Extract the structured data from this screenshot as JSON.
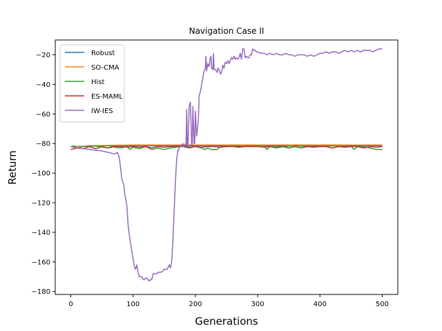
{
  "chart_data": {
    "type": "line",
    "title": "Navigation Case II",
    "xlabel": "Generations",
    "ylabel": "Return",
    "xlim": [
      -25,
      525
    ],
    "ylim": [
      -182,
      -10
    ],
    "xticks": [
      0,
      100,
      200,
      300,
      400,
      500
    ],
    "yticks": [
      -180,
      -160,
      -140,
      -120,
      -100,
      -80,
      -60,
      -40,
      -20
    ],
    "legend_position": "upper-left",
    "grid": false,
    "series": [
      {
        "name": "Robust",
        "color": "#1f77b4",
        "points": [
          [
            0,
            -82
          ],
          [
            25,
            -81.8
          ],
          [
            50,
            -81.5
          ],
          [
            100,
            -81.5
          ],
          [
            150,
            -81.5
          ],
          [
            200,
            -81.5
          ],
          [
            250,
            -81.5
          ],
          [
            300,
            -81.5
          ],
          [
            350,
            -81.5
          ],
          [
            400,
            -81.5
          ],
          [
            450,
            -81.5
          ],
          [
            500,
            -81.5
          ]
        ]
      },
      {
        "name": "SO-CMA",
        "color": "#ff7f0e",
        "points": [
          [
            0,
            -82
          ],
          [
            15,
            -82
          ],
          [
            30,
            -81.5
          ],
          [
            60,
            -81.2
          ],
          [
            100,
            -81
          ],
          [
            150,
            -81
          ],
          [
            200,
            -81
          ],
          [
            250,
            -81
          ],
          [
            300,
            -81
          ],
          [
            350,
            -81
          ],
          [
            400,
            -81
          ],
          [
            450,
            -81
          ],
          [
            500,
            -81
          ]
        ]
      },
      {
        "name": "Hist",
        "color": "#2ca02c",
        "points": [
          [
            0,
            -82
          ],
          [
            5,
            -81.5
          ],
          [
            10,
            -83
          ],
          [
            20,
            -82
          ],
          [
            35,
            -81.5
          ],
          [
            45,
            -82
          ],
          [
            60,
            -83
          ],
          [
            65,
            -82
          ],
          [
            70,
            -82.5
          ],
          [
            80,
            -83
          ],
          [
            90,
            -82
          ],
          [
            95,
            -84
          ],
          [
            100,
            -82.5
          ],
          [
            110,
            -83.5
          ],
          [
            120,
            -82
          ],
          [
            125,
            -83
          ],
          [
            130,
            -84
          ],
          [
            140,
            -83
          ],
          [
            150,
            -84
          ],
          [
            160,
            -83
          ],
          [
            175,
            -82
          ],
          [
            180,
            -82
          ],
          [
            190,
            -83
          ],
          [
            200,
            -82
          ],
          [
            210,
            -83
          ],
          [
            215,
            -84
          ],
          [
            220,
            -83
          ],
          [
            225,
            -84
          ],
          [
            235,
            -84
          ],
          [
            240,
            -82
          ],
          [
            250,
            -82
          ],
          [
            260,
            -81.5
          ],
          [
            270,
            -82
          ],
          [
            280,
            -81.5
          ],
          [
            300,
            -81.5
          ],
          [
            310,
            -81.5
          ],
          [
            315,
            -84
          ],
          [
            320,
            -82
          ],
          [
            340,
            -82
          ],
          [
            360,
            -81.5
          ],
          [
            380,
            -82
          ],
          [
            400,
            -82
          ],
          [
            420,
            -81.5
          ],
          [
            440,
            -82
          ],
          [
            450,
            -82
          ],
          [
            455,
            -84
          ],
          [
            460,
            -82
          ],
          [
            470,
            -82
          ],
          [
            480,
            -83
          ],
          [
            490,
            -84
          ],
          [
            500,
            -84
          ]
        ]
      },
      {
        "name": "ES-MAML",
        "color": "#d62728",
        "points": [
          [
            0,
            -84
          ],
          [
            10,
            -83
          ],
          [
            20,
            -83.5
          ],
          [
            30,
            -82
          ],
          [
            40,
            -83.5
          ],
          [
            50,
            -82
          ],
          [
            60,
            -83
          ],
          [
            70,
            -82
          ],
          [
            80,
            -82
          ],
          [
            90,
            -82.5
          ],
          [
            100,
            -82
          ],
          [
            110,
            -82.5
          ],
          [
            120,
            -82
          ],
          [
            130,
            -83
          ],
          [
            140,
            -82
          ],
          [
            150,
            -82.5
          ],
          [
            160,
            -82
          ],
          [
            170,
            -82
          ],
          [
            180,
            -81.5
          ],
          [
            190,
            -82.5
          ],
          [
            200,
            -82
          ],
          [
            210,
            -82.5
          ],
          [
            220,
            -82
          ],
          [
            230,
            -82
          ],
          [
            240,
            -82.5
          ],
          [
            250,
            -82
          ],
          [
            260,
            -82
          ],
          [
            270,
            -82.5
          ],
          [
            280,
            -82
          ],
          [
            290,
            -82
          ],
          [
            300,
            -82
          ],
          [
            310,
            -82.5
          ],
          [
            320,
            -82
          ],
          [
            330,
            -83
          ],
          [
            340,
            -82
          ],
          [
            350,
            -83
          ],
          [
            360,
            -82
          ],
          [
            370,
            -83
          ],
          [
            380,
            -82
          ],
          [
            390,
            -82.5
          ],
          [
            400,
            -82
          ],
          [
            410,
            -82
          ],
          [
            420,
            -83
          ],
          [
            430,
            -82
          ],
          [
            440,
            -82.5
          ],
          [
            450,
            -82
          ],
          [
            460,
            -82
          ],
          [
            470,
            -83
          ],
          [
            480,
            -82
          ],
          [
            490,
            -82.5
          ],
          [
            500,
            -82
          ]
        ]
      },
      {
        "name": "IW-IES",
        "color": "#9467bd",
        "points": [
          [
            0,
            -82
          ],
          [
            10,
            -83
          ],
          [
            20,
            -83.5
          ],
          [
            30,
            -84
          ],
          [
            40,
            -84.5
          ],
          [
            50,
            -85
          ],
          [
            60,
            -86
          ],
          [
            70,
            -87
          ],
          [
            75,
            -86
          ],
          [
            78,
            -90
          ],
          [
            80,
            -97
          ],
          [
            82,
            -104
          ],
          [
            85,
            -108
          ],
          [
            87,
            -115
          ],
          [
            90,
            -122
          ],
          [
            92,
            -135
          ],
          [
            95,
            -145
          ],
          [
            98,
            -153
          ],
          [
            100,
            -158
          ],
          [
            102,
            -163
          ],
          [
            104,
            -165
          ],
          [
            106,
            -162
          ],
          [
            108,
            -167
          ],
          [
            110,
            -170
          ],
          [
            112,
            -170
          ],
          [
            114,
            -170
          ],
          [
            116,
            -172
          ],
          [
            118,
            -172
          ],
          [
            120,
            -171
          ],
          [
            122,
            -171
          ],
          [
            124,
            -172
          ],
          [
            126,
            -173
          ],
          [
            128,
            -172
          ],
          [
            130,
            -172
          ],
          [
            132,
            -168
          ],
          [
            135,
            -168
          ],
          [
            138,
            -168
          ],
          [
            140,
            -167
          ],
          [
            145,
            -167
          ],
          [
            148,
            -166
          ],
          [
            150,
            -165
          ],
          [
            155,
            -165
          ],
          [
            158,
            -162
          ],
          [
            160,
            -164
          ],
          [
            162,
            -160
          ],
          [
            164,
            -145
          ],
          [
            166,
            -125
          ],
          [
            168,
            -105
          ],
          [
            170,
            -90
          ],
          [
            172,
            -85
          ],
          [
            174,
            -83
          ],
          [
            176,
            -82
          ],
          [
            178,
            -81
          ],
          [
            180,
            -80
          ],
          [
            182,
            -82
          ],
          [
            184,
            -80
          ],
          [
            185,
            -81
          ],
          [
            186,
            -57
          ],
          [
            187,
            -82
          ],
          [
            188,
            -82
          ],
          [
            190,
            -55
          ],
          [
            192,
            -52
          ],
          [
            194,
            -81
          ],
          [
            195,
            -81
          ],
          [
            196,
            -55
          ],
          [
            198,
            -80
          ],
          [
            199,
            -80
          ],
          [
            200,
            -58
          ],
          [
            202,
            -75
          ],
          [
            204,
            -68
          ],
          [
            205,
            -62
          ],
          [
            206,
            -48
          ],
          [
            208,
            -45
          ],
          [
            209,
            -43
          ],
          [
            210,
            -40
          ],
          [
            212,
            -36
          ],
          [
            213,
            -33
          ],
          [
            214,
            -31
          ],
          [
            216,
            -29
          ],
          [
            217,
            -21
          ],
          [
            218,
            -31
          ],
          [
            220,
            -26
          ],
          [
            222,
            -28
          ],
          [
            224,
            -22
          ],
          [
            225,
            -21
          ],
          [
            226,
            -29
          ],
          [
            228,
            -30
          ],
          [
            229,
            -19
          ],
          [
            230,
            -30
          ],
          [
            232,
            -30
          ],
          [
            234,
            -31
          ],
          [
            235,
            -32
          ],
          [
            236,
            -29
          ],
          [
            238,
            -30
          ],
          [
            240,
            -33
          ],
          [
            242,
            -32
          ],
          [
            244,
            -27
          ],
          [
            246,
            -29
          ],
          [
            248,
            -25
          ],
          [
            250,
            -26
          ],
          [
            252,
            -24
          ],
          [
            254,
            -26
          ],
          [
            256,
            -24
          ],
          [
            258,
            -22
          ],
          [
            260,
            -23
          ],
          [
            262,
            -21
          ],
          [
            264,
            -23
          ],
          [
            266,
            -22
          ],
          [
            268,
            -23
          ],
          [
            270,
            -22
          ],
          [
            272,
            -19
          ],
          [
            274,
            -23
          ],
          [
            276,
            -16
          ],
          [
            278,
            -16
          ],
          [
            280,
            -22
          ],
          [
            282,
            -21
          ],
          [
            284,
            -22
          ],
          [
            286,
            -22
          ],
          [
            288,
            -20
          ],
          [
            290,
            -20
          ],
          [
            292,
            -16
          ],
          [
            294,
            -17
          ],
          [
            296,
            -17
          ],
          [
            298,
            -18
          ],
          [
            300,
            -18
          ],
          [
            305,
            -19
          ],
          [
            310,
            -19
          ],
          [
            315,
            -20
          ],
          [
            320,
            -19
          ],
          [
            325,
            -20
          ],
          [
            330,
            -19
          ],
          [
            335,
            -20
          ],
          [
            340,
            -20
          ],
          [
            345,
            -19
          ],
          [
            350,
            -20
          ],
          [
            355,
            -20
          ],
          [
            360,
            -21
          ],
          [
            365,
            -20
          ],
          [
            370,
            -20
          ],
          [
            375,
            -20
          ],
          [
            380,
            -21
          ],
          [
            385,
            -20
          ],
          [
            390,
            -21
          ],
          [
            395,
            -20
          ],
          [
            400,
            -19
          ],
          [
            405,
            -19
          ],
          [
            410,
            -18
          ],
          [
            415,
            -19
          ],
          [
            420,
            -18
          ],
          [
            425,
            -18
          ],
          [
            430,
            -19
          ],
          [
            435,
            -18
          ],
          [
            440,
            -17
          ],
          [
            445,
            -18
          ],
          [
            450,
            -17
          ],
          [
            455,
            -18
          ],
          [
            460,
            -17
          ],
          [
            465,
            -18
          ],
          [
            470,
            -17
          ],
          [
            475,
            -17
          ],
          [
            480,
            -17
          ],
          [
            485,
            -18
          ],
          [
            490,
            -17
          ],
          [
            495,
            -16
          ],
          [
            500,
            -16
          ]
        ]
      }
    ]
  }
}
